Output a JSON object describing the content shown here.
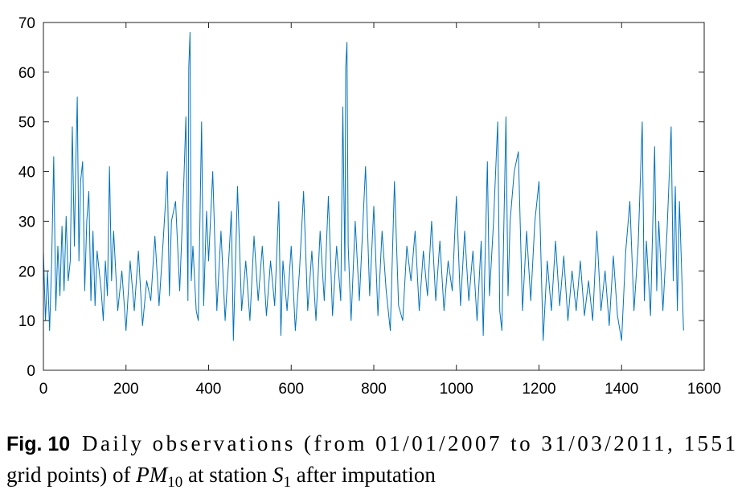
{
  "chart_data": {
    "type": "line",
    "x": [
      0,
      5,
      10,
      15,
      20,
      25,
      30,
      35,
      40,
      45,
      50,
      55,
      60,
      65,
      70,
      75,
      78,
      82,
      86,
      90,
      95,
      100,
      105,
      110,
      115,
      120,
      125,
      130,
      140,
      145,
      150,
      155,
      160,
      165,
      170,
      180,
      190,
      200,
      210,
      220,
      230,
      240,
      250,
      260,
      270,
      280,
      290,
      300,
      305,
      310,
      320,
      330,
      340,
      345,
      350,
      352,
      355,
      358,
      362,
      370,
      375,
      380,
      383,
      388,
      395,
      400,
      410,
      420,
      430,
      440,
      450,
      455,
      460,
      470,
      480,
      490,
      500,
      510,
      520,
      530,
      540,
      550,
      560,
      570,
      575,
      580,
      590,
      600,
      610,
      620,
      630,
      640,
      650,
      660,
      670,
      680,
      690,
      700,
      710,
      720,
      725,
      730,
      732,
      735,
      738,
      745,
      755,
      765,
      780,
      790,
      800,
      810,
      820,
      830,
      840,
      850,
      860,
      870,
      880,
      890,
      900,
      910,
      920,
      930,
      940,
      950,
      960,
      970,
      980,
      990,
      1000,
      1010,
      1020,
      1030,
      1040,
      1050,
      1060,
      1065,
      1075,
      1080,
      1090,
      1100,
      1105,
      1110,
      1120,
      1125,
      1130,
      1140,
      1150,
      1160,
      1170,
      1180,
      1190,
      1200,
      1210,
      1220,
      1230,
      1240,
      1250,
      1260,
      1270,
      1280,
      1290,
      1300,
      1310,
      1320,
      1330,
      1340,
      1350,
      1360,
      1370,
      1380,
      1390,
      1400,
      1410,
      1420,
      1430,
      1440,
      1450,
      1455,
      1460,
      1470,
      1480,
      1485,
      1490,
      1500,
      1510,
      1520,
      1525,
      1530,
      1535,
      1540,
      1545,
      1550
    ],
    "series": [
      {
        "color": "#0072bd",
        "values": [
          24,
          10,
          20,
          8,
          22,
          43,
          12,
          25,
          15,
          29,
          16,
          31,
          18,
          22,
          49,
          25,
          40,
          55,
          22,
          38,
          42,
          16,
          30,
          36,
          14,
          28,
          13,
          24,
          16,
          10,
          22,
          15,
          41,
          18,
          28,
          12,
          20,
          8,
          22,
          12,
          24,
          9,
          18,
          14,
          27,
          13,
          26,
          40,
          15,
          30,
          34,
          16,
          38,
          51,
          14,
          61,
          68,
          18,
          25,
          12,
          10,
          35,
          50,
          13,
          32,
          22,
          40,
          12,
          28,
          10,
          24,
          32,
          6,
          37,
          12,
          22,
          10,
          27,
          14,
          25,
          11,
          22,
          13,
          34,
          7,
          22,
          12,
          25,
          8,
          20,
          36,
          12,
          24,
          10,
          28,
          14,
          35,
          11,
          25,
          14,
          53,
          20,
          61,
          66,
          25,
          10,
          30,
          14,
          41,
          15,
          33,
          11,
          28,
          16,
          8,
          38,
          13,
          10,
          25,
          18,
          28,
          12,
          24,
          15,
          30,
          14,
          26,
          12,
          22,
          16,
          35,
          13,
          28,
          14,
          24,
          10,
          26,
          7,
          42,
          15,
          30,
          50,
          12,
          8,
          51,
          15,
          30,
          40,
          44,
          12,
          28,
          14,
          30,
          38,
          6,
          22,
          12,
          26,
          13,
          23,
          10,
          20,
          12,
          22,
          11,
          18,
          10,
          28,
          12,
          20,
          9,
          23,
          11,
          6,
          24,
          34,
          12,
          25,
          50,
          14,
          26,
          11,
          45,
          16,
          30,
          12,
          28,
          49,
          18,
          37,
          12,
          34,
          21,
          8
        ]
      }
    ],
    "xlim": [
      0,
      1600
    ],
    "ylim": [
      0,
      70
    ],
    "xticks": [
      0,
      200,
      400,
      600,
      800,
      1000,
      1200,
      1400,
      1600
    ],
    "yticks": [
      0,
      10,
      20,
      30,
      40,
      50,
      60,
      70
    ]
  },
  "caption": {
    "label": "Fig. 10",
    "parts": [
      "Daily observations (from 01/01/2007 to 31/03/2011, 1551",
      "grid points) of ",
      "PM",
      "10",
      " at station ",
      "S",
      "1",
      " after imputation"
    ]
  }
}
